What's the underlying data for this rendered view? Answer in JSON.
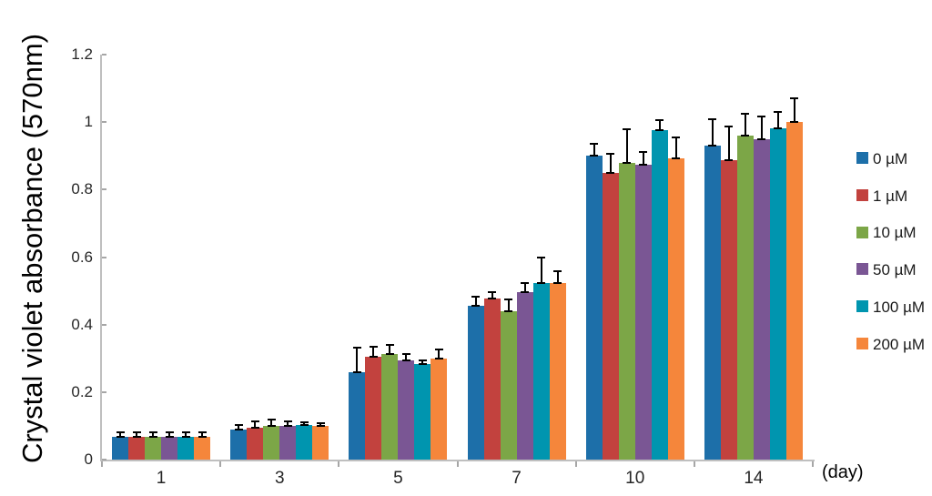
{
  "figure": {
    "background": "#ffffff",
    "axis_color": "#bfbfbf",
    "tick_color": "#a6a6a6",
    "error_bar_color": "#000000"
  },
  "chart_data": {
    "type": "bar",
    "title": "",
    "ylabel": "Crystal violet absorbance (570nm)",
    "xlabel": "(day)",
    "categories": [
      "1",
      "3",
      "5",
      "7",
      "10",
      "14"
    ],
    "ylim": [
      0,
      1.2
    ],
    "yticks": [
      0,
      0.2,
      0.4,
      0.6,
      0.8,
      1,
      1.2
    ],
    "ytick_labels": [
      "0",
      "0.2",
      "0.4",
      "0.6",
      "0.8",
      "1",
      "1.2"
    ],
    "grid": false,
    "legend_position": "right",
    "error_bars": "plus-direction-with-caps",
    "series": [
      {
        "name": "0 µM",
        "color": "#1d6fa9",
        "values": [
          0.068,
          0.09,
          0.26,
          0.457,
          0.901,
          0.931
        ],
        "errors": [
          0.013,
          0.012,
          0.073,
          0.025,
          0.035,
          0.077
        ]
      },
      {
        "name": "1 µM",
        "color": "#c2423e",
        "values": [
          0.068,
          0.095,
          0.305,
          0.477,
          0.85,
          0.888
        ],
        "errors": [
          0.013,
          0.018,
          0.03,
          0.018,
          0.057,
          0.1
        ]
      },
      {
        "name": "10 µM",
        "color": "#7ca647",
        "values": [
          0.068,
          0.101,
          0.314,
          0.44,
          0.879,
          0.961
        ],
        "errors": [
          0.013,
          0.019,
          0.027,
          0.035,
          0.1,
          0.064
        ]
      },
      {
        "name": "50 µM",
        "color": "#7a5694",
        "values": [
          0.068,
          0.1,
          0.294,
          0.497,
          0.873,
          0.949
        ],
        "errors": [
          0.013,
          0.013,
          0.02,
          0.025,
          0.038,
          0.067
        ]
      },
      {
        "name": "100 µM",
        "color": "#0095af",
        "values": [
          0.067,
          0.103,
          0.283,
          0.523,
          0.977,
          0.981
        ],
        "errors": [
          0.013,
          0.008,
          0.011,
          0.077,
          0.029,
          0.05
        ]
      },
      {
        "name": "200 µM",
        "color": "#f5863b",
        "values": [
          0.067,
          0.099,
          0.3,
          0.523,
          0.893,
          1.001
        ],
        "errors": [
          0.013,
          0.01,
          0.027,
          0.035,
          0.061,
          0.069
        ]
      }
    ]
  }
}
